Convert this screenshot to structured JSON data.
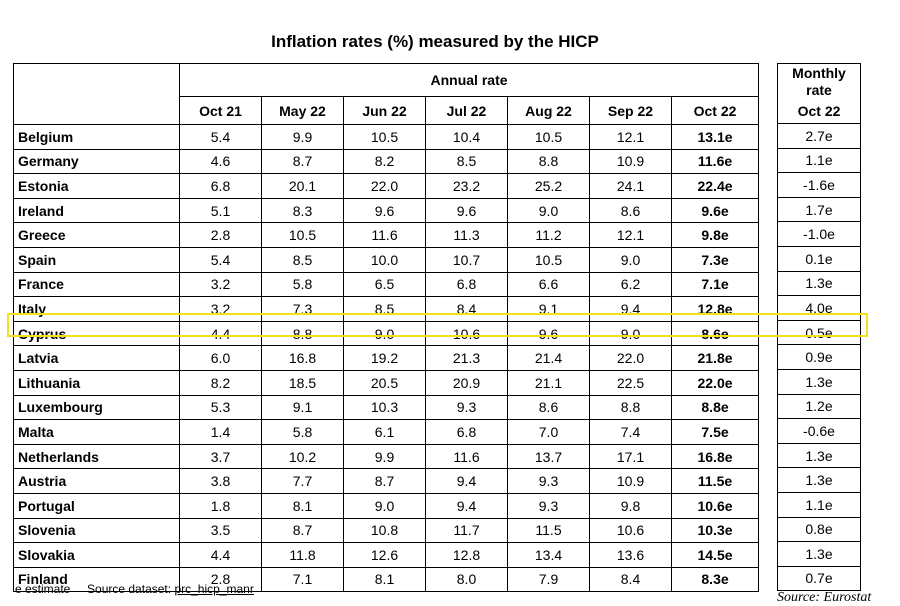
{
  "title": "Inflation rates (%) measured by the HICP",
  "headers": {
    "annual_rate": "Annual rate",
    "months": [
      "Oct 21",
      "May 22",
      "Jun 22",
      "Jul 22",
      "Aug 22",
      "Sep 22",
      "Oct 22"
    ],
    "monthly_rate_line1": "Monthly",
    "monthly_rate_line2": "rate",
    "monthly_month": "Oct 22"
  },
  "rows": [
    {
      "country": "Belgium",
      "annual": [
        "5.4",
        "9.9",
        "10.5",
        "10.4",
        "10.5",
        "12.1",
        "13.1e"
      ],
      "monthly": "2.7e"
    },
    {
      "country": "Germany",
      "annual": [
        "4.6",
        "8.7",
        "8.2",
        "8.5",
        "8.8",
        "10.9",
        "11.6e"
      ],
      "monthly": "1.1e"
    },
    {
      "country": "Estonia",
      "annual": [
        "6.8",
        "20.1",
        "22.0",
        "23.2",
        "25.2",
        "24.1",
        "22.4e"
      ],
      "monthly": "-1.6e"
    },
    {
      "country": "Ireland",
      "annual": [
        "5.1",
        "8.3",
        "9.6",
        "9.6",
        "9.0",
        "8.6",
        "9.6e"
      ],
      "monthly": "1.7e"
    },
    {
      "country": "Greece",
      "annual": [
        "2.8",
        "10.5",
        "11.6",
        "11.3",
        "11.2",
        "12.1",
        "9.8e"
      ],
      "monthly": "-1.0e"
    },
    {
      "country": "Spain",
      "annual": [
        "5.4",
        "8.5",
        "10.0",
        "10.7",
        "10.5",
        "9.0",
        "7.3e"
      ],
      "monthly": "0.1e"
    },
    {
      "country": "France",
      "annual": [
        "3.2",
        "5.8",
        "6.5",
        "6.8",
        "6.6",
        "6.2",
        "7.1e"
      ],
      "monthly": "1.3e"
    },
    {
      "country": "Italy",
      "annual": [
        "3.2",
        "7.3",
        "8.5",
        "8.4",
        "9.1",
        "9.4",
        "12.8e"
      ],
      "monthly": "4.0e"
    },
    {
      "country": "Cyprus",
      "annual": [
        "4.4",
        "8.8",
        "9.0",
        "10.6",
        "9.6",
        "9.0",
        "8.6e"
      ],
      "monthly": "0.5e"
    },
    {
      "country": "Latvia",
      "annual": [
        "6.0",
        "16.8",
        "19.2",
        "21.3",
        "21.4",
        "22.0",
        "21.8e"
      ],
      "monthly": "0.9e"
    },
    {
      "country": "Lithuania",
      "annual": [
        "8.2",
        "18.5",
        "20.5",
        "20.9",
        "21.1",
        "22.5",
        "22.0e"
      ],
      "monthly": "1.3e"
    },
    {
      "country": "Luxembourg",
      "annual": [
        "5.3",
        "9.1",
        "10.3",
        "9.3",
        "8.6",
        "8.8",
        "8.8e"
      ],
      "monthly": "1.2e"
    },
    {
      "country": "Malta",
      "annual": [
        "1.4",
        "5.8",
        "6.1",
        "6.8",
        "7.0",
        "7.4",
        "7.5e"
      ],
      "monthly": "-0.6e"
    },
    {
      "country": "Netherlands",
      "annual": [
        "3.7",
        "10.2",
        "9.9",
        "11.6",
        "13.7",
        "17.1",
        "16.8e"
      ],
      "monthly": "1.3e"
    },
    {
      "country": "Austria",
      "annual": [
        "3.8",
        "7.7",
        "8.7",
        "9.4",
        "9.3",
        "10.9",
        "11.5e"
      ],
      "monthly": "1.3e"
    },
    {
      "country": "Portugal",
      "annual": [
        "1.8",
        "8.1",
        "9.0",
        "9.4",
        "9.3",
        "9.8",
        "10.6e"
      ],
      "monthly": "1.1e"
    },
    {
      "country": "Slovenia",
      "annual": [
        "3.5",
        "8.7",
        "10.8",
        "11.7",
        "11.5",
        "10.6",
        "10.3e"
      ],
      "monthly": "0.8e"
    },
    {
      "country": "Slovakia",
      "annual": [
        "4.4",
        "11.8",
        "12.6",
        "12.8",
        "13.4",
        "13.6",
        "14.5e"
      ],
      "monthly": "1.3e"
    },
    {
      "country": "Finland",
      "annual": [
        "2.8",
        "7.1",
        "8.1",
        "8.0",
        "7.9",
        "8.4",
        "8.3e"
      ],
      "monthly": "0.7e"
    }
  ],
  "highlight_color": "#f4e01e",
  "footnote": {
    "estimate": "e estimate",
    "source_label": "Source dataset:",
    "dataset": "prc_hicp_manr"
  },
  "source": "Source: Eurostat"
}
